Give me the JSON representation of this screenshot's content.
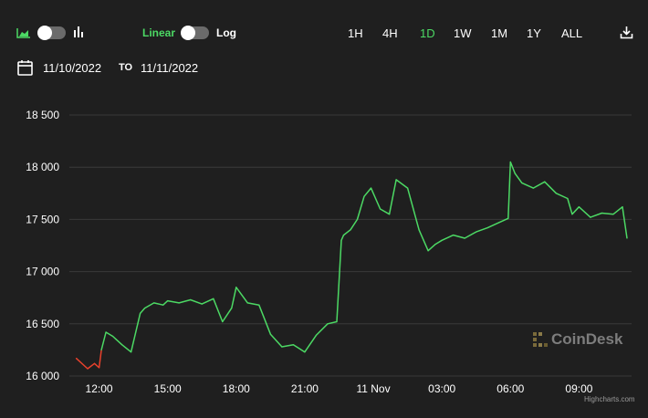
{
  "toolbar": {
    "chart_type_icons": [
      "area-chart-icon",
      "bar-chart-icon"
    ],
    "scale_linear_label": "Linear",
    "scale_log_label": "Log",
    "ranges": [
      "1H",
      "4H",
      "1D",
      "1W",
      "1M",
      "1Y",
      "ALL"
    ],
    "active_range": "1D",
    "download_icon": "download-icon"
  },
  "date_range": {
    "calendar_icon": "calendar-icon",
    "from": "11/10/2022",
    "to_label": "TO",
    "to": "11/11/2022"
  },
  "colors": {
    "background": "#1f1f1f",
    "up": "#4cd964",
    "down": "#e8412c",
    "accent_green": "#4cd964",
    "grid": "#3a3a3a"
  },
  "watermark": {
    "text": "CoinDesk"
  },
  "credits": "Highcharts.com",
  "chart_data": {
    "type": "line",
    "x_unit": "hour of day (Nov 10, 2022 local; values > 24 are Nov 11)",
    "x": [
      11.0,
      11.5,
      11.8,
      12.0,
      12.1,
      12.3,
      12.6,
      13.0,
      13.4,
      13.8,
      14.0,
      14.4,
      14.8,
      15.0,
      15.5,
      16.0,
      16.5,
      17.0,
      17.4,
      17.8,
      18.0,
      18.5,
      19.0,
      19.5,
      20.0,
      20.5,
      21.0,
      21.5,
      22.0,
      22.4,
      22.6,
      22.7,
      23.0,
      23.3,
      23.6,
      23.9,
      24.3,
      24.7,
      25.0,
      25.5,
      26.0,
      26.4,
      26.7,
      27.0,
      27.5,
      28.0,
      28.5,
      29.0,
      29.5,
      29.9,
      30.0,
      30.2,
      30.5,
      31.0,
      31.5,
      32.0,
      32.5,
      32.7,
      33.0,
      33.5,
      34.0,
      34.5,
      34.9,
      35.1
    ],
    "values": [
      16170,
      16070,
      16120,
      16080,
      16250,
      16420,
      16380,
      16300,
      16230,
      16600,
      16650,
      16700,
      16680,
      16720,
      16700,
      16730,
      16690,
      16740,
      16520,
      16650,
      16850,
      16700,
      16680,
      16400,
      16280,
      16300,
      16230,
      16390,
      16500,
      16520,
      17300,
      17350,
      17400,
      17500,
      17720,
      17800,
      17600,
      17550,
      17880,
      17800,
      17400,
      17200,
      17260,
      17300,
      17350,
      17320,
      17380,
      17420,
      17470,
      17510,
      18050,
      17940,
      17850,
      17800,
      17860,
      17750,
      17700,
      17550,
      17620,
      17520,
      17560,
      17550,
      17620,
      17320
    ],
    "down_until_x": 12.1,
    "yticks": [
      16000,
      16500,
      17000,
      17500,
      18000,
      18500
    ],
    "ytick_labels": [
      "16 000",
      "16 500",
      "17 000",
      "17 500",
      "18 000",
      "18 500"
    ],
    "xticks": [
      12,
      15,
      18,
      21,
      24,
      27,
      30,
      33
    ],
    "xtick_labels": [
      "12:00",
      "15:00",
      "18:00",
      "21:00",
      "11 Nov",
      "03:00",
      "06:00",
      "09:00"
    ],
    "xlim": [
      10.7,
      35.3
    ],
    "ylim": [
      16000,
      18500
    ],
    "grid": true
  }
}
